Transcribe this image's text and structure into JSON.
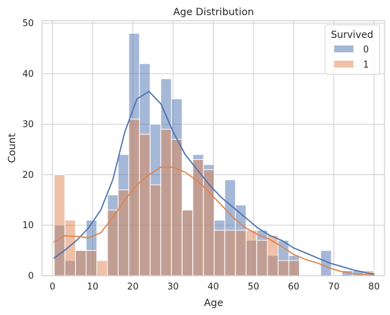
{
  "chart_data": {
    "type": "bar",
    "title": "Age Distribution",
    "xlabel": "Age",
    "ylabel": "Count",
    "xlim": [
      -2.6,
      82.6
    ],
    "ylim": [
      0,
      50.5
    ],
    "xticks": [
      0,
      10,
      20,
      30,
      40,
      50,
      60,
      70,
      80
    ],
    "yticks": [
      0,
      10,
      20,
      30,
      40,
      50
    ],
    "grid": true,
    "bin_start": 0.42,
    "bin_width": 2.6527,
    "legend": {
      "title": "Survived",
      "position": "top-right"
    },
    "series": [
      {
        "name": "0",
        "color": "#4c72b0",
        "values": [
          10,
          3,
          5,
          11,
          0,
          16,
          24,
          48,
          42,
          30,
          39,
          35,
          13,
          24,
          22,
          11,
          19,
          14,
          7,
          9,
          4,
          7,
          4,
          0,
          0,
          5,
          0,
          1,
          1,
          0
        ],
        "kde": [
          [
            0.4,
            3.5
          ],
          [
            3,
            5
          ],
          [
            6,
            7
          ],
          [
            9,
            9.5
          ],
          [
            12,
            13
          ],
          [
            15,
            19
          ],
          [
            18,
            28.5
          ],
          [
            21,
            35
          ],
          [
            24,
            36.5
          ],
          [
            27,
            34
          ],
          [
            30,
            28.5
          ],
          [
            33,
            24
          ],
          [
            36,
            21
          ],
          [
            39,
            18
          ],
          [
            42,
            15.5
          ],
          [
            45,
            13.5
          ],
          [
            48,
            11.5
          ],
          [
            51,
            9.5
          ],
          [
            54,
            8
          ],
          [
            57,
            7
          ],
          [
            60,
            5.5
          ],
          [
            63,
            4.5
          ],
          [
            66,
            3.5
          ],
          [
            69,
            2.5
          ],
          [
            72,
            1.8
          ],
          [
            75,
            1.1
          ],
          [
            78,
            0.6
          ],
          [
            80,
            0.3
          ]
        ]
      },
      {
        "name": "1",
        "color": "#dd8452",
        "values": [
          20,
          11,
          5,
          5,
          3,
          13,
          17,
          31,
          28,
          18,
          29,
          27,
          13,
          23,
          21,
          9,
          9,
          9,
          9,
          7,
          8,
          3,
          3,
          0,
          0,
          0,
          0,
          0,
          0,
          1
        ],
        "kde": [
          [
            0.4,
            6.7
          ],
          [
            3,
            7.9
          ],
          [
            6,
            7.8
          ],
          [
            9,
            7.5
          ],
          [
            12,
            8.5
          ],
          [
            15,
            11.5
          ],
          [
            18,
            15
          ],
          [
            21,
            18
          ],
          [
            24,
            20
          ],
          [
            27,
            21.5
          ],
          [
            30,
            21.5
          ],
          [
            33,
            20.5
          ],
          [
            36,
            18.8
          ],
          [
            39,
            16.5
          ],
          [
            42,
            14
          ],
          [
            45,
            11.5
          ],
          [
            48,
            9.5
          ],
          [
            51,
            8.2
          ],
          [
            54,
            7.2
          ],
          [
            57,
            5.8
          ],
          [
            60,
            4.2
          ],
          [
            63,
            3.2
          ],
          [
            66,
            2.5
          ],
          [
            69,
            1.5
          ],
          [
            72,
            0.8
          ],
          [
            75,
            0.4
          ],
          [
            78,
            0.2
          ],
          [
            80,
            0.1
          ]
        ]
      }
    ]
  }
}
